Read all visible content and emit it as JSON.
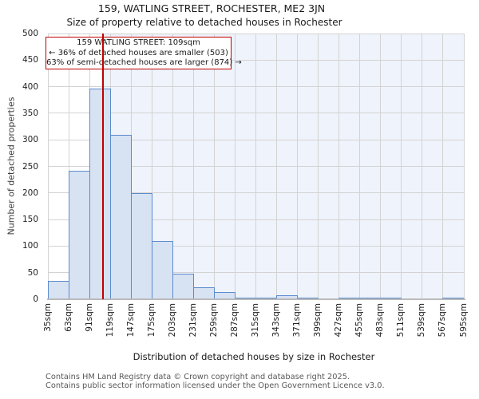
{
  "title": "159, WATLING STREET, ROCHESTER, ME2 3JN",
  "subtitle": "Size of property relative to detached houses in Rochester",
  "annotation": {
    "line1": "159 WATLING STREET: 109sqm",
    "line2": "← 36% of detached houses are smaller (503)",
    "line3": "63% of semi-detached houses are larger (874) →"
  },
  "chart_data": {
    "type": "bar",
    "title": "Size of property relative to detached houses in Rochester",
    "xlabel": "Distribution of detached houses by size in Rochester",
    "ylabel": "Number of detached properties",
    "categories": [
      "35sqm",
      "63sqm",
      "91sqm",
      "119sqm",
      "147sqm",
      "175sqm",
      "203sqm",
      "231sqm",
      "259sqm",
      "287sqm",
      "315sqm",
      "343sqm",
      "371sqm",
      "399sqm",
      "427sqm",
      "455sqm",
      "483sqm",
      "511sqm",
      "539sqm",
      "567sqm",
      "595sqm"
    ],
    "bin_start_sqm": 35,
    "bin_width_sqm": 28,
    "values": [
      35,
      241,
      396,
      309,
      200,
      110,
      48,
      22,
      13,
      2,
      3,
      8,
      3,
      0,
      1,
      1,
      1,
      0,
      0,
      2
    ],
    "marker_sqm": 109,
    "ylim": [
      0,
      500
    ],
    "yticks": [
      0,
      50,
      100,
      150,
      200,
      250,
      300,
      350,
      400,
      450,
      500
    ],
    "grid": true,
    "legend": "none"
  },
  "footer": {
    "line1": "Contains HM Land Registry data © Crown copyright and database right 2025.",
    "line2": "Contains public sector information licensed under the Open Government Licence v3.0."
  },
  "colors": {
    "bar_fill": "#d7e2f3",
    "bar_edge": "#5c8bcc",
    "marker": "#c00000",
    "annotation_border": "#c00000",
    "grid": "#d3d3d3",
    "tint": "#eff3fb",
    "axis_line": "#bbbbbb"
  }
}
